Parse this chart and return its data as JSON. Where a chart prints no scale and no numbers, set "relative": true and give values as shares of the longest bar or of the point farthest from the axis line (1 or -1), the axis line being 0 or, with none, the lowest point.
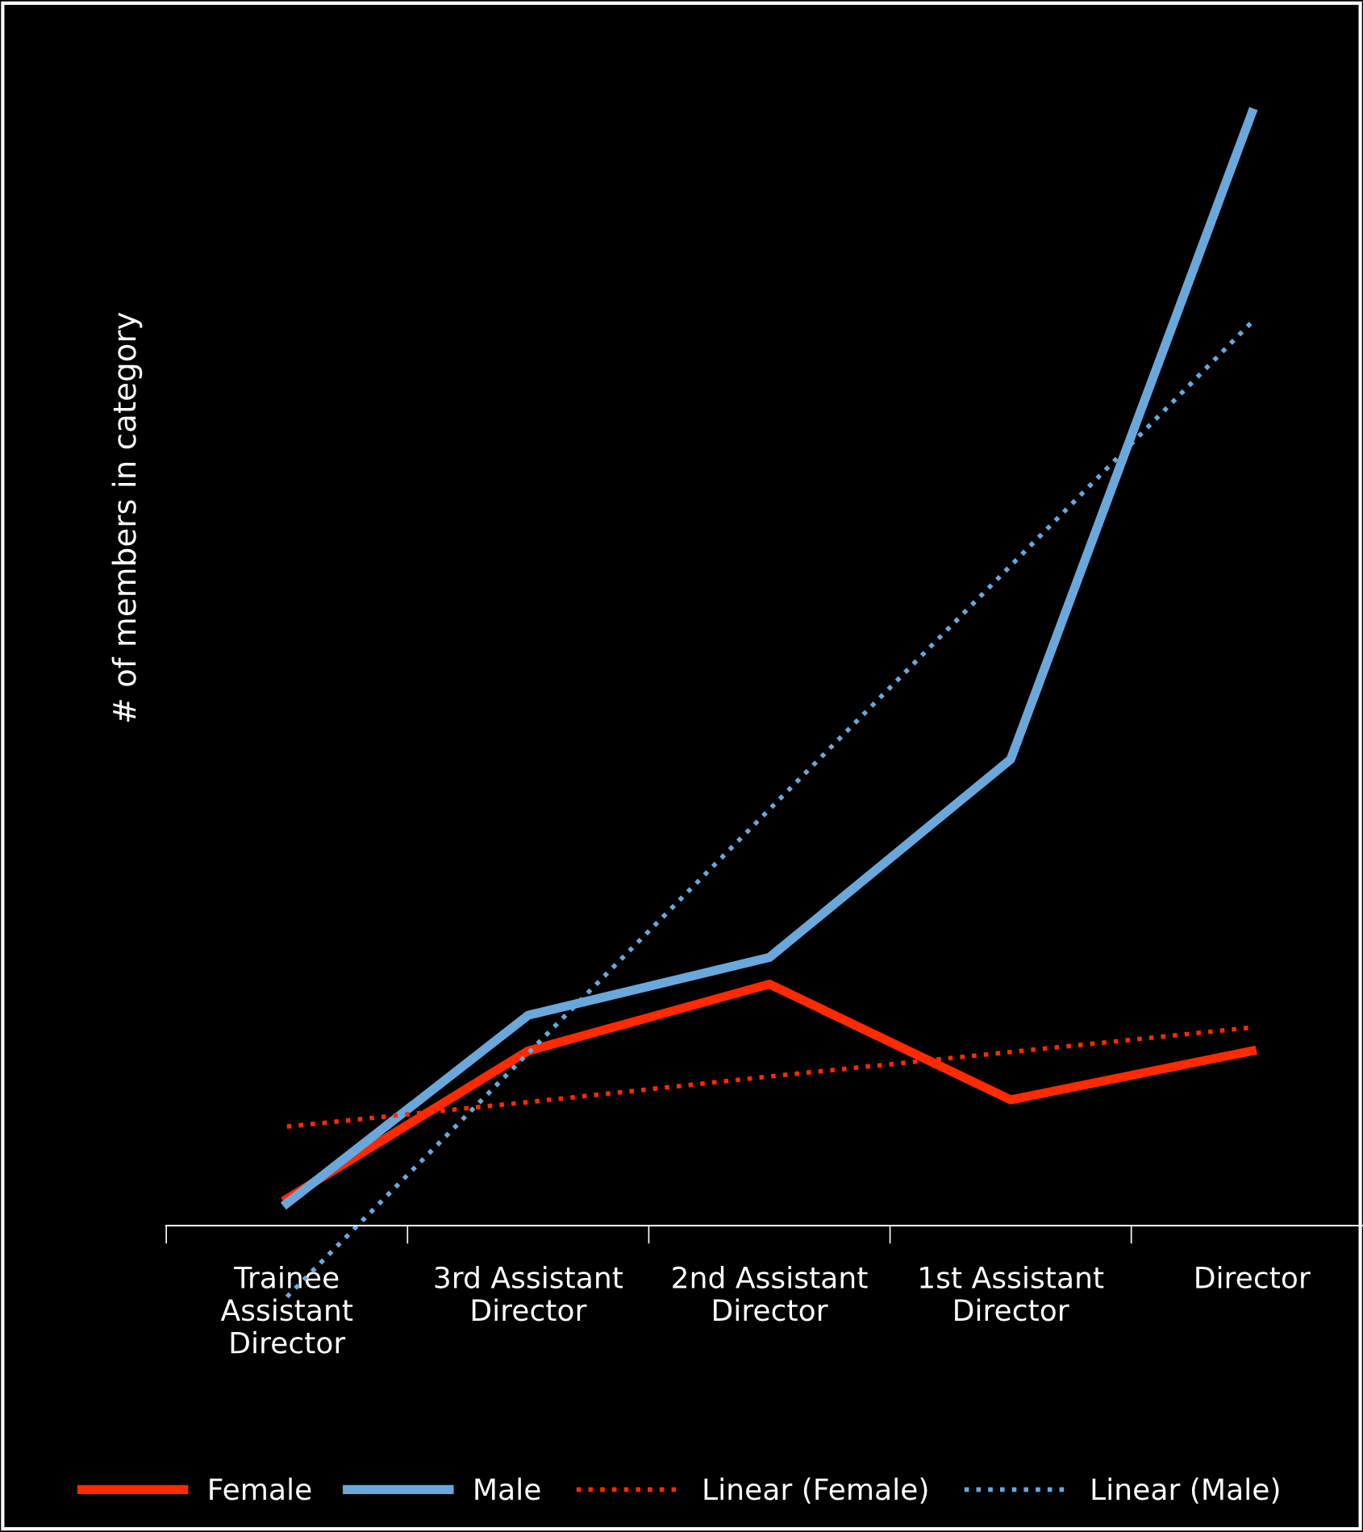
{
  "chart_data": {
    "type": "line",
    "relative": true,
    "ylabel": "# of members in category",
    "categories": [
      "Trainee\nAssistant\nDirector",
      "3rd Assistant\nDirector",
      "2nd Assistant\nDirector",
      "1st Assistant\nDirector",
      "Director"
    ],
    "series": [
      {
        "name": "Female",
        "color": "#ff2a00",
        "line_style": "solid",
        "values": [
          0.024,
          0.157,
          0.217,
          0.113,
          0.157
        ]
      },
      {
        "name": "Male",
        "color": "#6aa8dc",
        "line_style": "solid",
        "values": [
          0.02,
          0.189,
          0.241,
          0.419,
          1
        ]
      },
      {
        "name": "Linear (Female)",
        "color": "#ff2a00",
        "line_style": "dotted",
        "values": [
          0.089,
          0.111,
          0.134,
          0.156,
          0.178
        ]
      },
      {
        "name": "Linear (Male)",
        "color": "#6aa8dc",
        "line_style": "dotted",
        "values": [
          -0.064,
          0.155,
          0.374,
          0.593,
          0.812
        ]
      }
    ],
    "legend": "bottom",
    "grid": false,
    "marker": "none"
  }
}
